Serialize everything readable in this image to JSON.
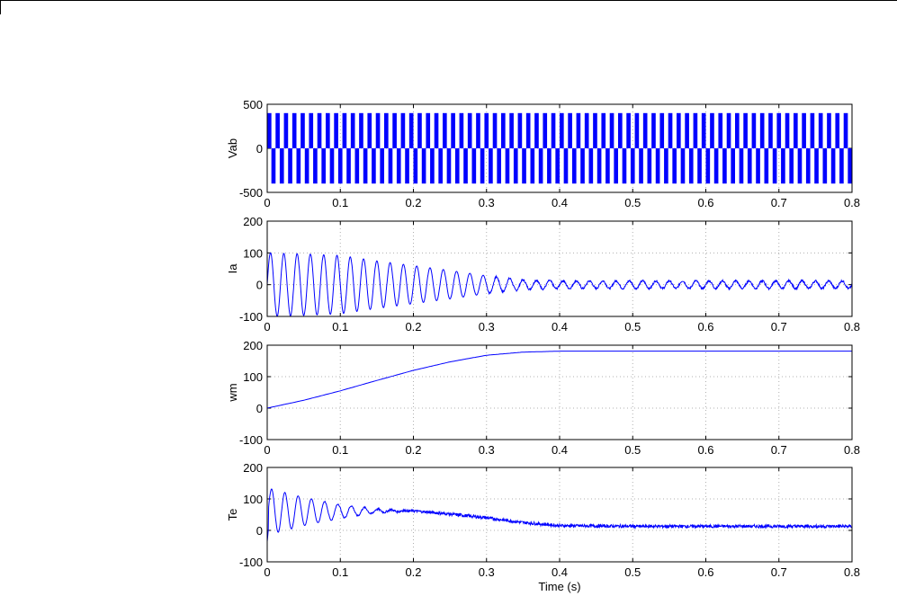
{
  "chart_data": [
    {
      "type": "line",
      "ylabel": "Vab",
      "xlabel": "",
      "xlim": [
        0,
        0.8
      ],
      "ylim": [
        -500,
        500
      ],
      "xticks": [
        "0",
        "0.1",
        "0.2",
        "0.3",
        "0.4",
        "0.5",
        "0.6",
        "0.7",
        "0.8"
      ],
      "yticks": [
        "500",
        "0",
        "-500"
      ],
      "grid": true,
      "series": [
        {
          "color": "#0000ff",
          "description_values": {
            "amplitude": 400,
            "pwm_pulse_count": 70
          },
          "x": [
            0,
            0.8
          ],
          "y_max": [
            400,
            400
          ],
          "y_min": [
            -400,
            -400
          ]
        }
      ]
    },
    {
      "type": "line",
      "ylabel": "Ia",
      "xlabel": "",
      "xlim": [
        0,
        0.8
      ],
      "ylim": [
        -100,
        200
      ],
      "xticks": [
        "0",
        "0.1",
        "0.2",
        "0.3",
        "0.4",
        "0.5",
        "0.6",
        "0.7",
        "0.8"
      ],
      "yticks": [
        "200",
        "100",
        "0",
        "-100"
      ],
      "grid": true,
      "series": [
        {
          "color": "#0000ff",
          "x": [
            0,
            0.05,
            0.1,
            0.15,
            0.2,
            0.25,
            0.3,
            0.35,
            0.4,
            0.5,
            0.6,
            0.7,
            0.8
          ],
          "envelope_amplitude": [
            100,
            97,
            92,
            75,
            60,
            45,
            28,
            15,
            12,
            12,
            12,
            12,
            12
          ],
          "envelope_center": [
            0,
            0,
            0,
            0,
            0,
            0,
            0,
            0,
            0,
            0,
            0,
            0,
            0
          ],
          "frequency_hz": 55
        }
      ]
    },
    {
      "type": "line",
      "ylabel": "wm",
      "xlabel": "",
      "xlim": [
        0,
        0.8
      ],
      "ylim": [
        -100,
        200
      ],
      "xticks": [
        "0",
        "0.1",
        "0.2",
        "0.3",
        "0.4",
        "0.5",
        "0.6",
        "0.7",
        "0.8"
      ],
      "yticks": [
        "200",
        "100",
        "0",
        "-100"
      ],
      "grid": true,
      "series": [
        {
          "color": "#0000ff",
          "x": [
            0,
            0.05,
            0.1,
            0.15,
            0.2,
            0.25,
            0.3,
            0.35,
            0.4,
            0.5,
            0.6,
            0.7,
            0.8
          ],
          "y": [
            0,
            25,
            55,
            88,
            120,
            147,
            168,
            178,
            181,
            181,
            181,
            181,
            181
          ]
        }
      ]
    },
    {
      "type": "line",
      "ylabel": "Te",
      "xlabel": "Time (s)",
      "xlim": [
        0,
        0.8
      ],
      "ylim": [
        -100,
        200
      ],
      "xticks": [
        "0",
        "0.1",
        "0.2",
        "0.3",
        "0.4",
        "0.5",
        "0.6",
        "0.7",
        "0.8"
      ],
      "yticks": [
        "200",
        "100",
        "0",
        "-100"
      ],
      "grid": true,
      "series": [
        {
          "color": "#0000ff",
          "x": [
            0,
            0.05,
            0.1,
            0.15,
            0.2,
            0.25,
            0.3,
            0.35,
            0.4,
            0.5,
            0.6,
            0.7,
            0.8
          ],
          "center": [
            60,
            60,
            60,
            62,
            62,
            52,
            40,
            25,
            15,
            13,
            13,
            13,
            13
          ],
          "oscillation_amplitude": [
            75,
            45,
            22,
            6,
            0,
            0,
            0,
            0,
            0,
            0,
            0,
            0,
            0
          ],
          "noise": [
            0,
            0,
            2,
            3,
            4,
            5,
            5,
            5,
            5,
            5,
            5,
            5,
            5
          ],
          "frequency_hz": 55
        }
      ]
    }
  ]
}
